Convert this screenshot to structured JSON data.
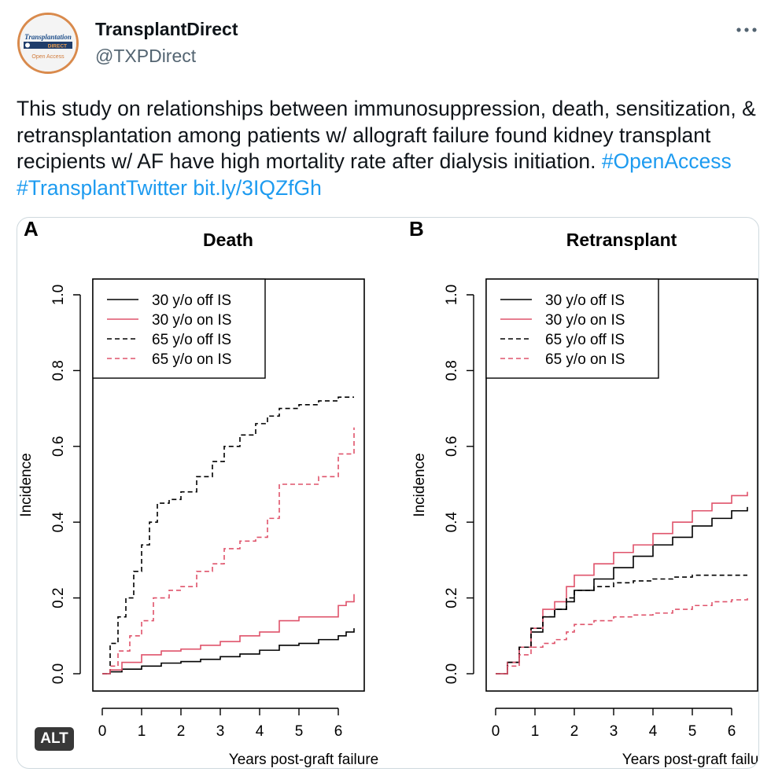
{
  "account": {
    "name": "TransplantDirect",
    "handle": "@TXPDirect",
    "avatar_lines": [
      "Transplantation",
      "DIRECT",
      "Open Access"
    ]
  },
  "tweet": {
    "text": "This study on relationships between immunosuppression, death, sensitization, & retransplantation among patients w/ allograft failure found kidney transplant recipients w/ AF have high mortality rate after dialysis initiation.",
    "links": [
      "#OpenAccess",
      "#TransplantTwitter",
      "bit.ly/3IQZfGh"
    ]
  },
  "media": {
    "alt_label": "ALT"
  },
  "colors": {
    "black_series": "#000000",
    "red_series": "#df536b",
    "link": "#1d9bf0"
  },
  "chart_data": [
    {
      "type": "line",
      "panel": "A",
      "title": "Death",
      "xlabel": "Years post-graft failure",
      "ylabel": "Incidence",
      "xlim": [
        0,
        6.4
      ],
      "ylim": [
        0,
        1.0
      ],
      "xticks": [
        "0",
        "1",
        "2",
        "3",
        "4",
        "5",
        "6"
      ],
      "yticks": [
        "0.0",
        "0.2",
        "0.4",
        "0.6",
        "0.8",
        "1.0"
      ],
      "legend_position": "top-left",
      "series": [
        {
          "name": "30 y/o off IS",
          "color": "#000000",
          "style": "solid",
          "x": [
            0,
            0.2,
            0.5,
            1.0,
            1.5,
            2.0,
            2.5,
            3.0,
            3.5,
            4.0,
            4.5,
            5.0,
            5.5,
            6.0,
            6.2,
            6.4
          ],
          "y": [
            0,
            0.005,
            0.012,
            0.02,
            0.028,
            0.032,
            0.038,
            0.045,
            0.052,
            0.062,
            0.075,
            0.08,
            0.09,
            0.1,
            0.11,
            0.12
          ]
        },
        {
          "name": "30 y/o on IS",
          "color": "#df536b",
          "style": "solid",
          "x": [
            0,
            0.2,
            0.5,
            1.0,
            1.5,
            2.0,
            2.5,
            3.0,
            3.5,
            4.0,
            4.5,
            5.0,
            5.5,
            6.0,
            6.2,
            6.4
          ],
          "y": [
            0,
            0.01,
            0.03,
            0.05,
            0.06,
            0.065,
            0.075,
            0.085,
            0.1,
            0.11,
            0.14,
            0.15,
            0.15,
            0.18,
            0.19,
            0.21
          ]
        },
        {
          "name": "65 y/o off IS",
          "color": "#000000",
          "style": "dashed",
          "x": [
            0,
            0.2,
            0.4,
            0.6,
            0.8,
            1.0,
            1.2,
            1.4,
            1.7,
            2.0,
            2.4,
            2.8,
            3.1,
            3.5,
            3.9,
            4.2,
            4.5,
            5.0,
            5.5,
            6.0,
            6.4
          ],
          "y": [
            0,
            0.08,
            0.15,
            0.2,
            0.27,
            0.34,
            0.4,
            0.45,
            0.46,
            0.48,
            0.52,
            0.56,
            0.6,
            0.63,
            0.66,
            0.68,
            0.7,
            0.71,
            0.72,
            0.73,
            0.73
          ]
        },
        {
          "name": "65 y/o on IS",
          "color": "#df536b",
          "style": "dashed",
          "x": [
            0,
            0.2,
            0.4,
            0.7,
            1.0,
            1.3,
            1.7,
            2.0,
            2.4,
            2.8,
            3.1,
            3.5,
            3.9,
            4.2,
            4.5,
            5.0,
            5.5,
            6.0,
            6.4
          ],
          "y": [
            0,
            0.02,
            0.06,
            0.1,
            0.14,
            0.2,
            0.22,
            0.23,
            0.27,
            0.29,
            0.33,
            0.35,
            0.36,
            0.41,
            0.5,
            0.5,
            0.52,
            0.58,
            0.65
          ]
        }
      ]
    },
    {
      "type": "line",
      "panel": "B",
      "title": "Retransplant",
      "xlabel": "Years post-graft failure",
      "ylabel": "Incidence",
      "xlim": [
        0,
        6.4
      ],
      "ylim": [
        0,
        1.0
      ],
      "xticks": [
        "0",
        "1",
        "2",
        "3",
        "4",
        "5",
        "6"
      ],
      "yticks": [
        "0.0",
        "0.2",
        "0.4",
        "0.6",
        "0.8",
        "1.0"
      ],
      "legend_position": "top-left",
      "series": [
        {
          "name": "30 y/o off IS",
          "color": "#000000",
          "style": "solid",
          "x": [
            0,
            0.3,
            0.6,
            0.9,
            1.2,
            1.5,
            1.8,
            2.0,
            2.5,
            3.0,
            3.5,
            4.0,
            4.5,
            5.0,
            5.5,
            6.0,
            6.4
          ],
          "y": [
            0,
            0.03,
            0.07,
            0.11,
            0.15,
            0.17,
            0.19,
            0.22,
            0.25,
            0.28,
            0.31,
            0.34,
            0.36,
            0.39,
            0.41,
            0.43,
            0.44
          ]
        },
        {
          "name": "30 y/o on IS",
          "color": "#df536b",
          "style": "solid",
          "x": [
            0,
            0.3,
            0.6,
            0.9,
            1.2,
            1.5,
            1.8,
            2.0,
            2.5,
            3.0,
            3.5,
            4.0,
            4.5,
            5.0,
            5.5,
            6.0,
            6.4
          ],
          "y": [
            0,
            0.03,
            0.07,
            0.12,
            0.17,
            0.19,
            0.23,
            0.26,
            0.29,
            0.32,
            0.34,
            0.37,
            0.4,
            0.43,
            0.45,
            0.47,
            0.48
          ]
        },
        {
          "name": "65 y/o off IS",
          "color": "#000000",
          "style": "dashed",
          "x": [
            0,
            0.3,
            0.6,
            0.9,
            1.2,
            1.5,
            1.8,
            2.0,
            2.5,
            3.0,
            3.5,
            4.0,
            4.5,
            5.0,
            5.5,
            6.0,
            6.4
          ],
          "y": [
            0,
            0.03,
            0.07,
            0.12,
            0.15,
            0.17,
            0.2,
            0.22,
            0.23,
            0.24,
            0.245,
            0.25,
            0.255,
            0.26,
            0.26,
            0.26,
            0.26
          ]
        },
        {
          "name": "65 y/o on IS",
          "color": "#df536b",
          "style": "dashed",
          "x": [
            0,
            0.3,
            0.6,
            0.9,
            1.2,
            1.5,
            1.8,
            2.0,
            2.5,
            3.0,
            3.5,
            4.0,
            4.5,
            5.0,
            5.5,
            6.0,
            6.4
          ],
          "y": [
            0,
            0.02,
            0.05,
            0.07,
            0.08,
            0.09,
            0.11,
            0.13,
            0.14,
            0.15,
            0.155,
            0.16,
            0.17,
            0.18,
            0.19,
            0.195,
            0.2
          ]
        }
      ]
    }
  ]
}
